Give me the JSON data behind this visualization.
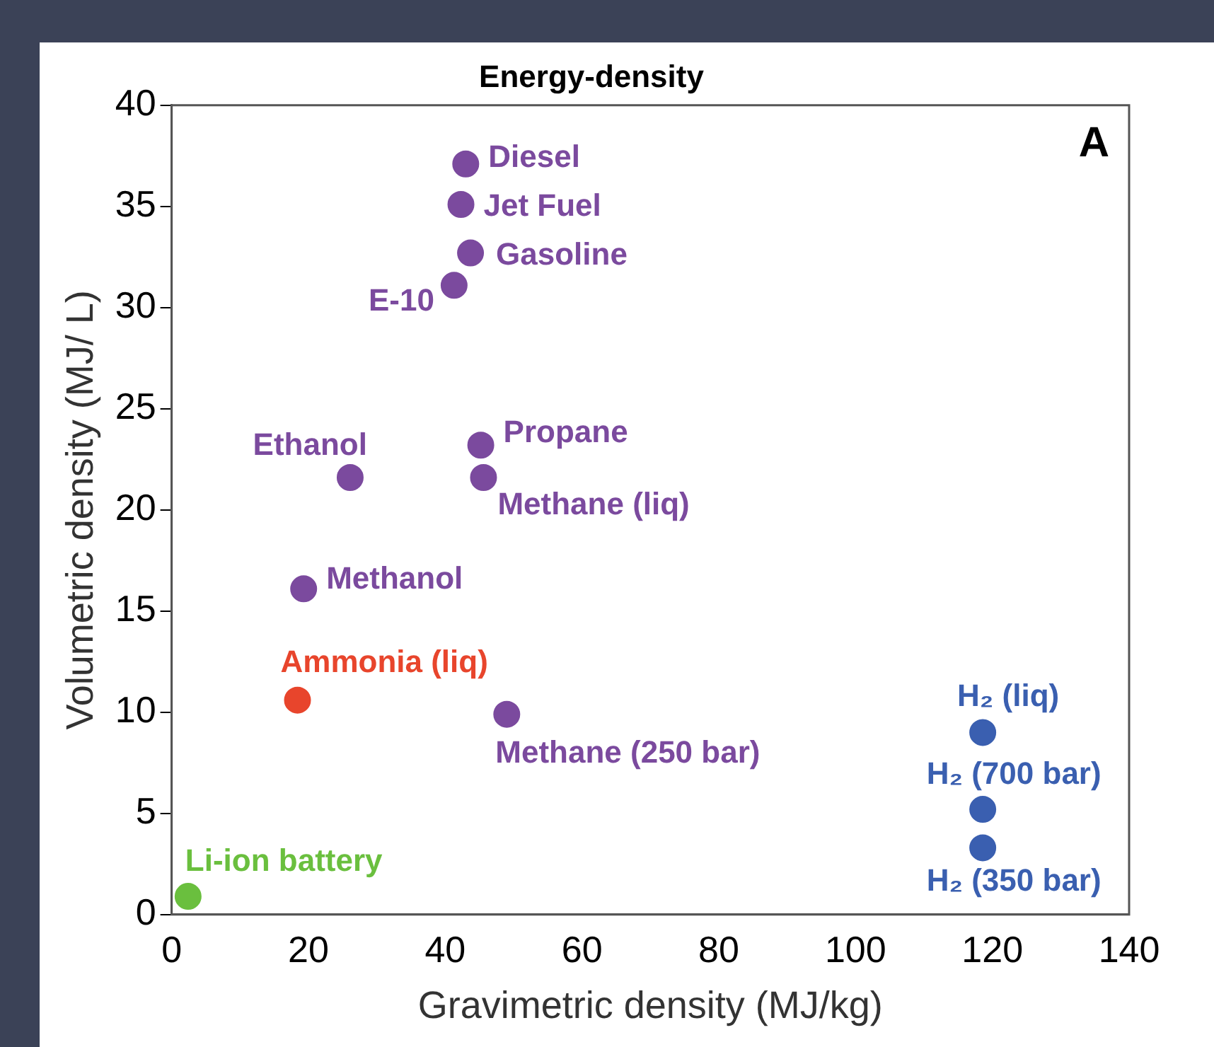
{
  "chart_data": {
    "type": "scatter",
    "title": "Energy-density",
    "xlabel": "Gravimetric density (MJ/kg)",
    "ylabel": "Volumetric density (MJ/ L)",
    "xlim": [
      0,
      140
    ],
    "xticks": [
      0,
      20,
      40,
      60,
      80,
      100,
      120,
      140
    ],
    "ylim": [
      0,
      40
    ],
    "yticks": [
      0,
      5,
      10,
      15,
      20,
      25,
      30,
      35,
      40
    ],
    "grid": false,
    "legend": false,
    "marker": "circle",
    "annotations": [
      "A"
    ],
    "series": [
      {
        "name": "Diesel",
        "color": "#7b4a9e",
        "x": [
          43
        ],
        "values": [
          37.1
        ]
      },
      {
        "name": "Jet Fuel",
        "color": "#7b4a9e",
        "x": [
          42.3
        ],
        "values": [
          35.1
        ]
      },
      {
        "name": "Gasoline",
        "color": "#7b4a9e",
        "x": [
          43.7
        ],
        "values": [
          32.7
        ]
      },
      {
        "name": "E-10",
        "color": "#7b4a9e",
        "x": [
          41.3
        ],
        "values": [
          31.1
        ]
      },
      {
        "name": "Propane",
        "color": "#7b4a9e",
        "x": [
          45.2
        ],
        "values": [
          23.2
        ]
      },
      {
        "name": "Methane (liq)",
        "color": "#7b4a9e",
        "x": [
          45.6
        ],
        "values": [
          21.6
        ]
      },
      {
        "name": "Ethanol",
        "color": "#7b4a9e",
        "x": [
          26.1
        ],
        "values": [
          21.6
        ]
      },
      {
        "name": "Methanol",
        "color": "#7b4a9e",
        "x": [
          19.3
        ],
        "values": [
          16.1
        ]
      },
      {
        "name": "Ammonia (liq)",
        "color": "#e8452c",
        "x": [
          18.4
        ],
        "values": [
          10.6
        ]
      },
      {
        "name": "Methane (250 bar)",
        "color": "#7b4a9e",
        "x": [
          49
        ],
        "values": [
          9.9
        ]
      },
      {
        "name": "H₂ (liq)",
        "color": "#3a5fb0",
        "x": [
          118.6
        ],
        "values": [
          9.0
        ]
      },
      {
        "name": "H₂ (700 bar)",
        "color": "#3a5fb0",
        "x": [
          118.6
        ],
        "values": [
          5.2
        ]
      },
      {
        "name": "H₂ (350 bar)",
        "color": "#3a5fb0",
        "x": [
          118.6
        ],
        "values": [
          3.3
        ]
      },
      {
        "name": "Li-ion battery",
        "color": "#6abf3e",
        "x": [
          2.4
        ],
        "values": [
          0.9
        ]
      }
    ]
  }
}
